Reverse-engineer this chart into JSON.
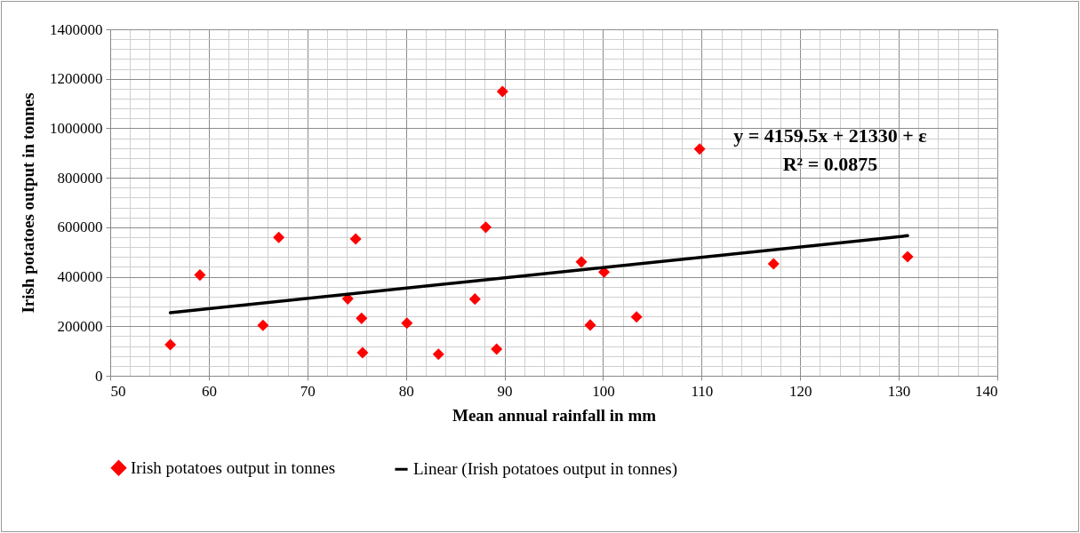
{
  "chart_data": {
    "type": "scatter",
    "xlabel": "Mean annual rainfall in mm",
    "ylabel": "Irish  potatoes output  in tonnes",
    "xlim": [
      50,
      140
    ],
    "xticks": [
      50,
      60,
      70,
      80,
      90,
      100,
      110,
      120,
      130,
      140
    ],
    "ylim": [
      0,
      1400000
    ],
    "yticks": [
      0,
      200000,
      400000,
      600000,
      800000,
      1000000,
      1200000,
      1400000
    ],
    "grid": true,
    "legend": "bottom",
    "x": [
      56.1,
      59.1,
      65.5,
      67.1,
      74.1,
      74.9,
      75.5,
      75.6,
      80.1,
      83.3,
      87.0,
      88.1,
      89.2,
      89.8,
      97.8,
      98.7,
      100.1,
      103.4,
      109.8,
      117.3,
      130.9
    ],
    "series": [
      {
        "name": "Irish potatoes output in tonnes",
        "color": "#ff0000",
        "marker": "diamond",
        "values": [
          126000,
          407000,
          204000,
          559000,
          311000,
          553000,
          232000,
          93000,
          213000,
          87000,
          310000,
          600000,
          108000,
          1149000,
          460000,
          205000,
          419000,
          238000,
          916000,
          452000,
          481000
        ]
      },
      {
        "name": "Linear (Irish potatoes output in tonnes)",
        "type": "line",
        "color": "#000000",
        "x": [
          56.1,
          130.9
        ],
        "marker": "none",
        "values": [
          255000,
          566000
        ]
      }
    ],
    "annotations": [
      "y = 4159.5x + 21330 + ε",
      "R² = 0.0875"
    ]
  }
}
